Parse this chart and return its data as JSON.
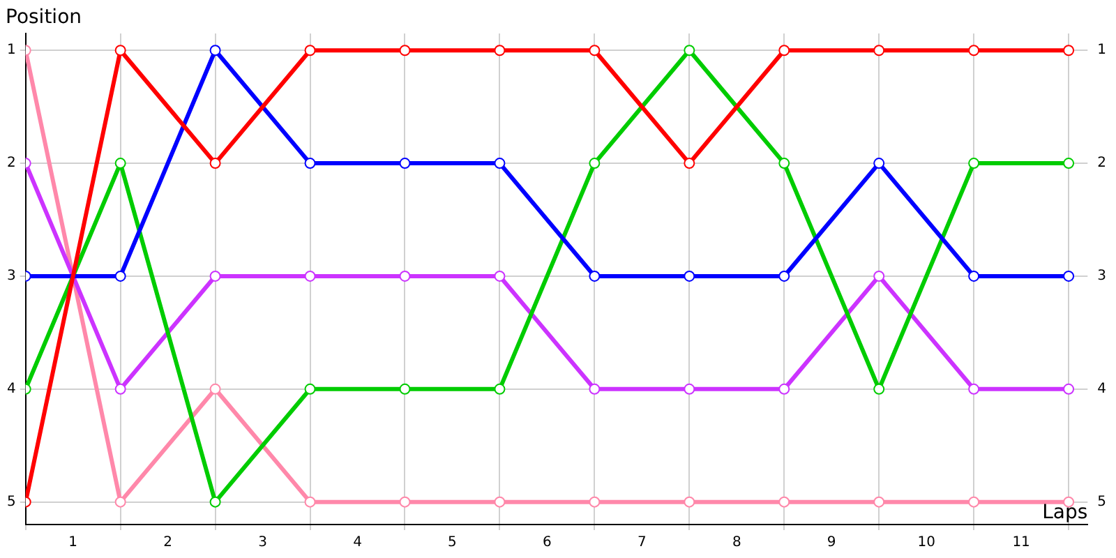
{
  "chart_data": {
    "type": "line",
    "xlabel": "Laps",
    "ylabel": "Position",
    "x": [
      0,
      1,
      2,
      3,
      4,
      5,
      6,
      7,
      8,
      9,
      10,
      11
    ],
    "series": [
      {
        "color": "#ff0000",
        "values": [
          5,
          1,
          2,
          1,
          1,
          1,
          1,
          2,
          1,
          1,
          1,
          1
        ]
      },
      {
        "color": "#0000ff",
        "values": [
          3,
          3,
          1,
          2,
          2,
          2,
          3,
          3,
          3,
          2,
          3,
          3
        ]
      },
      {
        "color": "#00cc00",
        "values": [
          4,
          2,
          5,
          4,
          4,
          4,
          2,
          1,
          2,
          4,
          2,
          2
        ]
      },
      {
        "color": "#cc33ff",
        "values": [
          2,
          4,
          3,
          3,
          3,
          3,
          4,
          4,
          4,
          3,
          4,
          4
        ]
      },
      {
        "color": "#ff88aa",
        "values": [
          1,
          5,
          4,
          5,
          5,
          5,
          5,
          5,
          5,
          5,
          5,
          5
        ]
      }
    ],
    "xlim": [
      0,
      11.2
    ],
    "xticks": [
      {
        "value": 0,
        "label": null
      },
      {
        "value": 0.5,
        "label": "1"
      },
      {
        "value": 1,
        "label": null
      },
      {
        "value": 1.5,
        "label": "2"
      },
      {
        "value": 2,
        "label": null
      },
      {
        "value": 2.5,
        "label": "3"
      },
      {
        "value": 3,
        "label": null
      },
      {
        "value": 3.5,
        "label": "4"
      },
      {
        "value": 4,
        "label": null
      },
      {
        "value": 4.5,
        "label": "5"
      },
      {
        "value": 5,
        "label": null
      },
      {
        "value": 5.5,
        "label": "6"
      },
      {
        "value": 6,
        "label": null
      },
      {
        "value": 6.5,
        "label": "7"
      },
      {
        "value": 7,
        "label": null
      },
      {
        "value": 7.5,
        "label": "8"
      },
      {
        "value": 8,
        "label": null
      },
      {
        "value": 8.5,
        "label": "9"
      },
      {
        "value": 9,
        "label": null
      },
      {
        "value": 9.5,
        "label": "10"
      },
      {
        "value": 10,
        "label": null
      },
      {
        "value": 10.5,
        "label": "11"
      },
      {
        "value": 11,
        "label": null
      }
    ],
    "ylim": [
      5.2,
      0.85
    ],
    "yticks": [
      1,
      2,
      3,
      4,
      5
    ],
    "y2lim": [
      5.2,
      0.85
    ],
    "y2ticks": [
      1,
      2,
      3,
      4,
      5
    ],
    "grid": true,
    "marker": "circle",
    "line_style": "solid",
    "legend": false
  }
}
